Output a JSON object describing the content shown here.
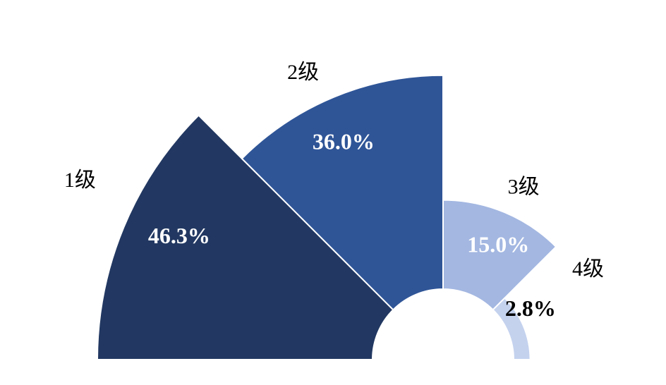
{
  "chart_data": {
    "type": "rose",
    "categories": [
      "1级",
      "2级",
      "3级",
      "4级"
    ],
    "values": [
      46.3,
      36.0,
      15.0,
      2.8
    ],
    "value_labels": [
      "46.3%",
      "36.0%",
      "15.0%",
      "2.8%"
    ],
    "colors": [
      "#223862",
      "#2f5597",
      "#a3b7e1",
      "#c4d2ee"
    ]
  }
}
